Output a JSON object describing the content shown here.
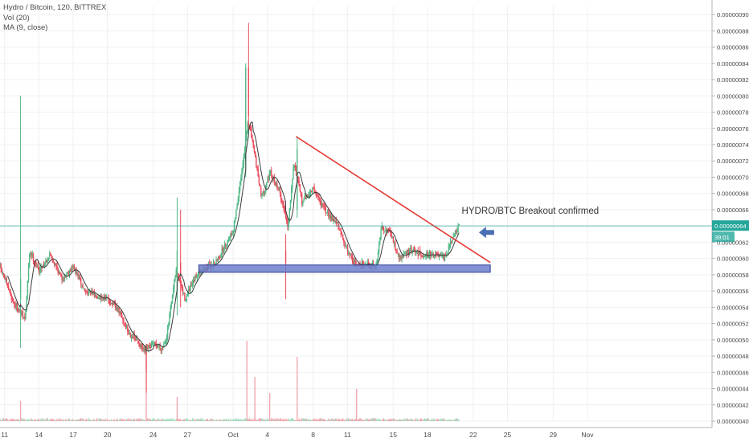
{
  "header": {
    "symbol_line": "Hydro / Bitcoin, 120, BITTREX",
    "volume_indicator": "Vol (20)",
    "ma_indicator": "MA (9, close)"
  },
  "annotation": {
    "text": "HYDRO/BTC Breakout confirmed"
  },
  "price_badge": {
    "price": "0.00000064",
    "countdown": "39:01"
  },
  "colors": {
    "up": "#53b987",
    "down": "#eb4d5c",
    "ma": "#3a3a3a",
    "trendline": "#e53935",
    "support_zone_fill": "#6d7fcc",
    "support_zone_border": "#2c3f99",
    "last_price": "#26a69a",
    "arrow": "#4a6fb5",
    "grid": "#eef0f3",
    "axis_text": "#4a4a4a"
  },
  "icons": {
    "breakout_marker": "arrow-left-icon"
  },
  "chart_data": {
    "type": "candlestick",
    "title": "Hydro / Bitcoin, 120, BITTREX",
    "y_axis_side": "right",
    "ylim": [
      4e-07,
      9.1e-07
    ],
    "y_ticks": [
      "0.00000040",
      "0.00000042",
      "0.00000044",
      "0.00000046",
      "0.00000048",
      "0.00000050",
      "0.00000052",
      "0.00000054",
      "0.00000056",
      "0.00000058",
      "0.00000060",
      "0.00000062",
      "0.00000064",
      "0.00000066",
      "0.00000068",
      "0.00000070",
      "0.00000072",
      "0.00000074",
      "0.00000076",
      "0.00000078",
      "0.00000080",
      "0.00000082",
      "0.00000084",
      "0.00000086",
      "0.00000088",
      "0.00000090"
    ],
    "x_range_days": [
      -20.4,
      41.9
    ],
    "x_ticks": [
      {
        "label": "11",
        "day": -20
      },
      {
        "label": "14",
        "day": -17
      },
      {
        "label": "17",
        "day": -14
      },
      {
        "label": "20",
        "day": -11
      },
      {
        "label": "24",
        "day": -7
      },
      {
        "label": "27",
        "day": -4
      },
      {
        "label": "Oct",
        "day": 0
      },
      {
        "label": "4",
        "day": 3
      },
      {
        "label": "8",
        "day": 7
      },
      {
        "label": "11",
        "day": 10
      },
      {
        "label": "15",
        "day": 14
      },
      {
        "label": "18",
        "day": 17
      },
      {
        "label": "22",
        "day": 21
      },
      {
        "label": "25",
        "day": 24
      },
      {
        "label": "29",
        "day": 28
      },
      {
        "label": "Nov",
        "day": 31
      }
    ],
    "grid": true,
    "indicators": [
      "Vol (20)",
      "MA (9, close)"
    ],
    "price_path": [
      {
        "day": -20.4,
        "price": 5.9e-07
      },
      {
        "day": -19.2,
        "price": 5.45e-07
      },
      {
        "day": -18.2,
        "price": 5.25e-07
      },
      {
        "day": -17.8,
        "price": 6.1e-07
      },
      {
        "day": -17.0,
        "price": 5.85e-07
      },
      {
        "day": -16.0,
        "price": 6.05e-07
      },
      {
        "day": -15.0,
        "price": 5.75e-07
      },
      {
        "day": -14.0,
        "price": 5.9e-07
      },
      {
        "day": -13.0,
        "price": 5.6e-07
      },
      {
        "day": -12.0,
        "price": 5.55e-07
      },
      {
        "day": -11.0,
        "price": 5.5e-07
      },
      {
        "day": -10.0,
        "price": 5.35e-07
      },
      {
        "day": -9.2,
        "price": 5.1e-07
      },
      {
        "day": -8.2,
        "price": 4.95e-07
      },
      {
        "day": -7.8,
        "price": 4.85e-07
      },
      {
        "day": -7.0,
        "price": 4.95e-07
      },
      {
        "day": -6.2,
        "price": 4.9e-07
      },
      {
        "day": -5.8,
        "price": 5.05e-07
      },
      {
        "day": -5.0,
        "price": 5.85e-07
      },
      {
        "day": -4.2,
        "price": 5.5e-07
      },
      {
        "day": -3.0,
        "price": 5.85e-07
      },
      {
        "day": -1.5,
        "price": 5.95e-07
      },
      {
        "day": 0.0,
        "price": 6.35e-07
      },
      {
        "day": 0.8,
        "price": 7.1e-07
      },
      {
        "day": 1.3,
        "price": 7.7e-07
      },
      {
        "day": 1.8,
        "price": 7.35e-07
      },
      {
        "day": 2.5,
        "price": 6.75e-07
      },
      {
        "day": 3.2,
        "price": 7.05e-07
      },
      {
        "day": 4.0,
        "price": 6.85e-07
      },
      {
        "day": 4.8,
        "price": 6.4e-07
      },
      {
        "day": 5.3,
        "price": 7.2e-07
      },
      {
        "day": 6.0,
        "price": 6.7e-07
      },
      {
        "day": 7.0,
        "price": 6.85e-07
      },
      {
        "day": 8.0,
        "price": 6.6e-07
      },
      {
        "day": 9.0,
        "price": 6.45e-07
      },
      {
        "day": 10.0,
        "price": 6.1e-07
      },
      {
        "day": 10.8,
        "price": 5.9e-07
      },
      {
        "day": 11.5,
        "price": 5.95e-07
      },
      {
        "day": 12.5,
        "price": 5.9e-07
      },
      {
        "day": 13.0,
        "price": 6.4e-07
      },
      {
        "day": 13.8,
        "price": 6.3e-07
      },
      {
        "day": 14.5,
        "price": 6e-07
      },
      {
        "day": 15.5,
        "price": 6.1e-07
      },
      {
        "day": 16.5,
        "price": 6.05e-07
      },
      {
        "day": 17.5,
        "price": 6.05e-07
      },
      {
        "day": 18.5,
        "price": 6e-07
      },
      {
        "day": 19.2,
        "price": 6.25e-07
      },
      {
        "day": 19.8,
        "price": 6.4e-07
      }
    ],
    "notable_candles": [
      {
        "day": -18.6,
        "open": 5.5e-07,
        "high": 8e-07,
        "low": 4.9e-07,
        "close": 5.75e-07
      },
      {
        "day": -4.9,
        "open": 5.5e-07,
        "high": 6.75e-07,
        "low": 5.3e-07,
        "close": 6.1e-07
      },
      {
        "day": -4.6,
        "open": 5.95e-07,
        "high": 6.6e-07,
        "low": 5.4e-07,
        "close": 5.8e-07
      },
      {
        "day": -7.6,
        "open": 4.85e-07,
        "high": 4.95e-07,
        "low": 4.35e-07,
        "close": 4.6e-07
      },
      {
        "day": 1.1,
        "open": 7.2e-07,
        "high": 8.4e-07,
        "low": 7e-07,
        "close": 8.35e-07
      },
      {
        "day": 1.35,
        "open": 8.35e-07,
        "high": 8.9e-07,
        "low": 7.6e-07,
        "close": 7.75e-07
      },
      {
        "day": 4.6,
        "open": 6.1e-07,
        "high": 6.3e-07,
        "low": 5.5e-07,
        "close": 5.95e-07
      },
      {
        "day": 5.6,
        "open": 6.6e-07,
        "high": 7.5e-07,
        "low": 6.5e-07,
        "close": 7.35e-07
      }
    ],
    "volume_spikes": [
      {
        "day": -18.6,
        "size": 0.25
      },
      {
        "day": -7.6,
        "size": 0.6
      },
      {
        "day": -4.9,
        "size": 0.3
      },
      {
        "day": 1.2,
        "size": 1.0
      },
      {
        "day": 1.9,
        "size": 0.55
      },
      {
        "day": 5.6,
        "size": 0.8
      },
      {
        "day": 10.8,
        "size": 0.4
      },
      {
        "day": 3.2,
        "size": 0.35
      }
    ],
    "trendline": {
      "from": {
        "day": 5.5,
        "price": 7.5e-07
      },
      "to": {
        "day": 22.5,
        "price": 5.95e-07
      }
    },
    "support_zone": {
      "from_day": -3.0,
      "to_day": 22.5,
      "low": 5.83e-07,
      "high": 5.92e-07
    },
    "last_price": 6.4e-07,
    "annotation_anchor": {
      "day": 20.0,
      "price": 6.55e-07
    },
    "arrow_anchor": {
      "day": 21.5,
      "price": 6.32e-07
    }
  }
}
